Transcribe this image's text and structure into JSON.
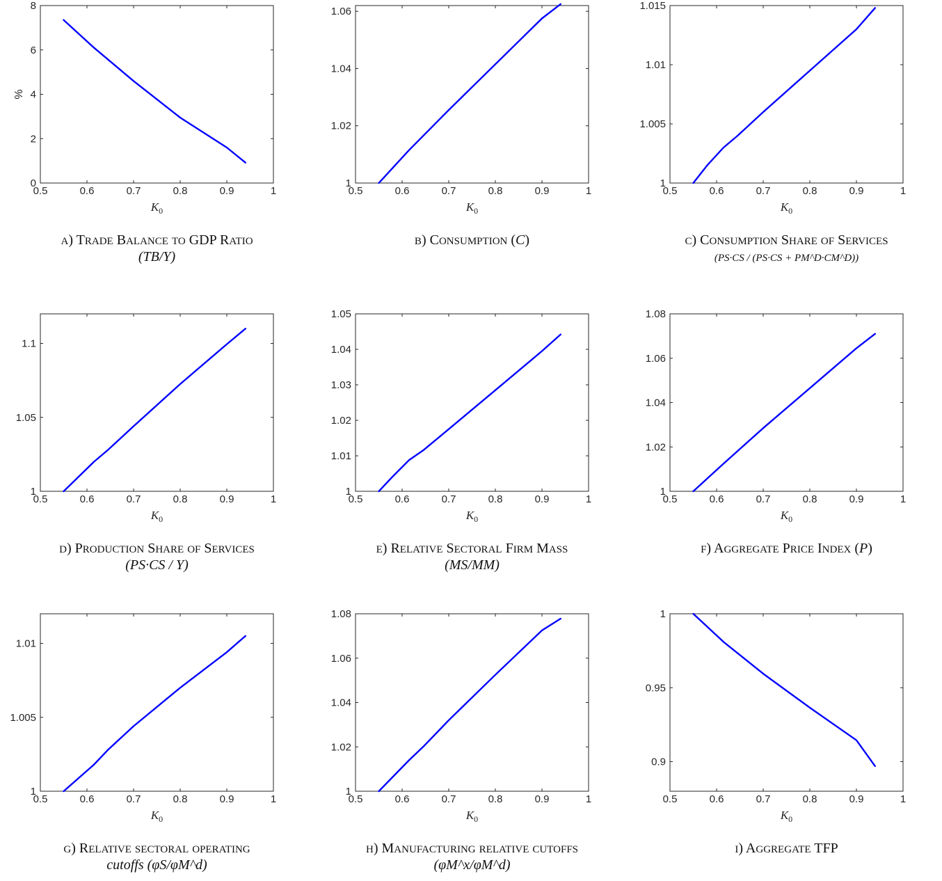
{
  "chart_data": [
    {
      "id": "a",
      "type": "line",
      "xlabel": "K0",
      "ylabel": "%",
      "xlim": [
        0.5,
        1
      ],
      "ylim": [
        0,
        8
      ],
      "xticks": [
        "0.5",
        "0.6",
        "0.7",
        "0.8",
        "0.9",
        "1"
      ],
      "yticks": [
        "0",
        "2",
        "4",
        "6",
        "8"
      ],
      "caption": [
        "a) Trade Balance to GDP Ratio",
        "(TB/Y)"
      ],
      "series": [
        {
          "color": "#0000ff",
          "x": [
            0.55,
            0.615,
            0.7,
            0.8,
            0.9,
            0.94
          ],
          "y": [
            7.35,
            6.1,
            4.6,
            2.95,
            1.6,
            0.92
          ]
        }
      ]
    },
    {
      "id": "b",
      "type": "line",
      "xlabel": "K0",
      "ylabel": "",
      "xlim": [
        0.5,
        1
      ],
      "ylim": [
        1,
        1.062
      ],
      "xticks": [
        "0.5",
        "0.6",
        "0.7",
        "0.8",
        "0.9",
        "1"
      ],
      "yticks": [
        "1",
        "1.02",
        "1.04",
        "1.06"
      ],
      "caption": [
        "b) Consumption (C)"
      ],
      "series": [
        {
          "color": "#0000ff",
          "x": [
            0.55,
            0.615,
            0.7,
            0.8,
            0.9,
            0.94
          ],
          "y": [
            1.0,
            1.0115,
            1.0255,
            1.0415,
            1.0575,
            1.0625
          ]
        }
      ]
    },
    {
      "id": "c",
      "type": "line",
      "xlabel": "K0",
      "ylabel": "",
      "xlim": [
        0.5,
        1
      ],
      "ylim": [
        1,
        1.015
      ],
      "xticks": [
        "0.5",
        "0.6",
        "0.7",
        "0.8",
        "0.9",
        "1"
      ],
      "yticks": [
        "1",
        "1.005",
        "1.01",
        "1.015"
      ],
      "caption": [
        "c) Consumption Share of Services",
        "(PS·CS / (PS·CS + PM^D·CM^D))"
      ],
      "series": [
        {
          "color": "#0000ff",
          "x": [
            0.55,
            0.58,
            0.615,
            0.645,
            0.7,
            0.8,
            0.9,
            0.94
          ],
          "y": [
            1.0,
            1.0015,
            1.003,
            1.004,
            1.006,
            1.0095,
            1.013,
            1.0148
          ]
        }
      ]
    },
    {
      "id": "d",
      "type": "line",
      "xlabel": "K0",
      "ylabel": "",
      "xlim": [
        0.5,
        1
      ],
      "ylim": [
        1,
        1.12
      ],
      "xticks": [
        "0.5",
        "0.6",
        "0.7",
        "0.8",
        "0.9",
        "1"
      ],
      "yticks": [
        "1",
        "1.05",
        "1.1"
      ],
      "caption": [
        "d) Production Share of Services",
        "(PS·CS / Y)"
      ],
      "series": [
        {
          "color": "#0000ff",
          "x": [
            0.55,
            0.615,
            0.645,
            0.7,
            0.8,
            0.9,
            0.94
          ],
          "y": [
            1.0,
            1.02,
            1.028,
            1.044,
            1.0725,
            1.0995,
            1.11
          ]
        }
      ]
    },
    {
      "id": "e",
      "type": "line",
      "xlabel": "K0",
      "ylabel": "",
      "xlim": [
        0.5,
        1
      ],
      "ylim": [
        1,
        1.05
      ],
      "xticks": [
        "0.5",
        "0.6",
        "0.7",
        "0.8",
        "0.9",
        "1"
      ],
      "yticks": [
        "1",
        "1.01",
        "1.02",
        "1.03",
        "1.04",
        "1.05"
      ],
      "caption": [
        "e) Relative Sectoral Firm Mass",
        "(MS/MM)"
      ],
      "series": [
        {
          "color": "#0000ff",
          "x": [
            0.55,
            0.58,
            0.615,
            0.645,
            0.7,
            0.8,
            0.9,
            0.94
          ],
          "y": [
            1.0,
            1.0042,
            1.0088,
            1.0115,
            1.0175,
            1.0285,
            1.0395,
            1.0442
          ]
        }
      ]
    },
    {
      "id": "f",
      "type": "line",
      "xlabel": "K0",
      "ylabel": "",
      "xlim": [
        0.5,
        1
      ],
      "ylim": [
        1,
        1.08
      ],
      "xticks": [
        "0.5",
        "0.6",
        "0.7",
        "0.8",
        "0.9",
        "1"
      ],
      "yticks": [
        "1",
        "1.02",
        "1.04",
        "1.06",
        "1.08"
      ],
      "caption": [
        "f) Aggregate Price Index (P)"
      ],
      "series": [
        {
          "color": "#0000ff",
          "x": [
            0.55,
            0.615,
            0.7,
            0.8,
            0.9,
            0.94
          ],
          "y": [
            1.0,
            1.0125,
            1.0285,
            1.0465,
            1.0645,
            1.071
          ]
        }
      ]
    },
    {
      "id": "g",
      "type": "line",
      "xlabel": "K0",
      "ylabel": "",
      "xlim": [
        0.5,
        1
      ],
      "ylim": [
        1,
        1.012
      ],
      "xticks": [
        "0.5",
        "0.6",
        "0.7",
        "0.8",
        "0.9",
        "1"
      ],
      "yticks": [
        "1",
        "1.005",
        "1.01"
      ],
      "caption": [
        "g) Relative sectoral operating",
        "cutoffs (φS/φM^d)"
      ],
      "series": [
        {
          "color": "#0000ff",
          "x": [
            0.55,
            0.615,
            0.645,
            0.7,
            0.8,
            0.9,
            0.94
          ],
          "y": [
            1.0,
            1.0018,
            1.0028,
            1.0044,
            1.007,
            1.0094,
            1.0105
          ]
        }
      ]
    },
    {
      "id": "h",
      "type": "line",
      "xlabel": "K0",
      "ylabel": "",
      "xlim": [
        0.5,
        1
      ],
      "ylim": [
        1,
        1.08
      ],
      "xticks": [
        "0.5",
        "0.6",
        "0.7",
        "0.8",
        "0.9",
        "1"
      ],
      "yticks": [
        "1",
        "1.02",
        "1.04",
        "1.06",
        "1.08"
      ],
      "caption": [
        "h) Manufacturing relative cutoffs",
        "(φM^x/φM^d)"
      ],
      "series": [
        {
          "color": "#0000ff",
          "x": [
            0.55,
            0.615,
            0.645,
            0.7,
            0.8,
            0.9,
            0.94
          ],
          "y": [
            1.0,
            1.014,
            1.02,
            1.032,
            1.0525,
            1.0725,
            1.0778
          ]
        }
      ]
    },
    {
      "id": "i",
      "type": "line",
      "xlabel": "K0",
      "ylabel": "",
      "xlim": [
        0.5,
        1
      ],
      "ylim": [
        0.88,
        1
      ],
      "xticks": [
        "0.5",
        "0.6",
        "0.7",
        "0.8",
        "0.9",
        "1"
      ],
      "yticks": [
        "0.9",
        "0.95",
        "1"
      ],
      "caption": [
        "i) Aggregate TFP"
      ],
      "series": [
        {
          "color": "#0000ff",
          "x": [
            0.55,
            0.615,
            0.7,
            0.8,
            0.9,
            0.94
          ],
          "y": [
            1.0,
            0.981,
            0.9595,
            0.9365,
            0.9145,
            0.897
          ]
        }
      ]
    }
  ]
}
